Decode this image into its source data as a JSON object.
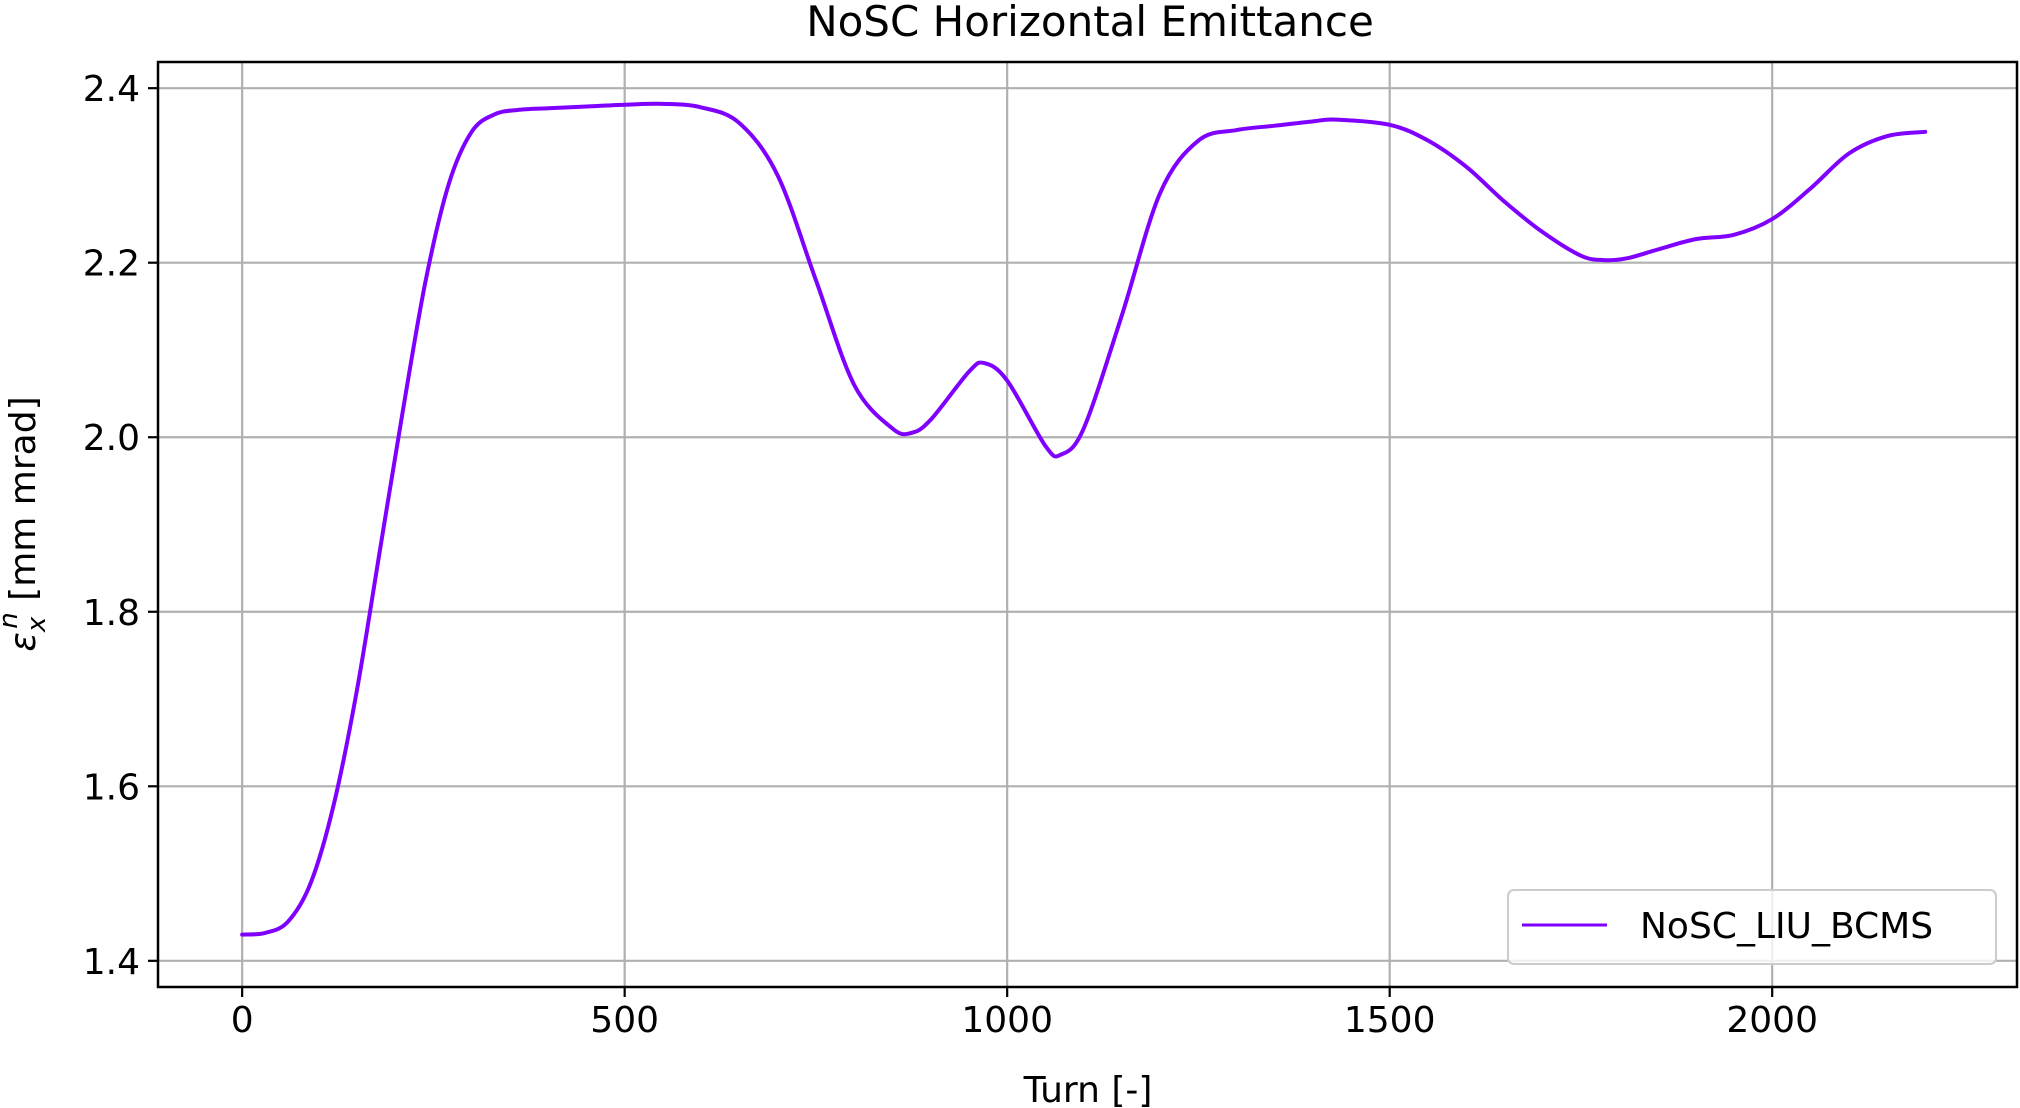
{
  "chart_data": {
    "type": "line",
    "title": "NoSC Horizontal Emittance",
    "xlabel": "Turn [-]",
    "ylabel": "ε",
    "ylabel_sub": "x",
    "ylabel_sup": "n",
    "ylabel_unit": " [mm mrad]",
    "xlim": [
      -110,
      2320
    ],
    "ylim": [
      1.37,
      2.43
    ],
    "xticks": [
      0,
      500,
      1000,
      1500,
      2000
    ],
    "xtick_labels": [
      "0",
      "500",
      "1000",
      "1500",
      "2000"
    ],
    "yticks": [
      1.4,
      1.6,
      1.8,
      2.0,
      2.2,
      2.4
    ],
    "ytick_labels": [
      "1.4",
      "1.6",
      "1.8",
      "2.0",
      "2.2",
      "2.4"
    ],
    "grid": true,
    "legend_position": "lower-right",
    "series": [
      {
        "name": "NoSC_LIU_BCMS",
        "color": "#7f00ff",
        "x": [
          0,
          30,
          60,
          90,
          120,
          150,
          180,
          210,
          240,
          270,
          300,
          330,
          360,
          400,
          450,
          500,
          550,
          600,
          650,
          700,
          750,
          800,
          850,
          875,
          900,
          950,
          970,
          1000,
          1050,
          1070,
          1100,
          1150,
          1200,
          1250,
          1300,
          1350,
          1400,
          1430,
          1500,
          1550,
          1600,
          1650,
          1700,
          1750,
          1780,
          1810,
          1850,
          1900,
          1950,
          2000,
          2050,
          2100,
          2150,
          2200
        ],
        "y": [
          1.43,
          1.432,
          1.445,
          1.49,
          1.58,
          1.71,
          1.87,
          2.03,
          2.18,
          2.29,
          2.35,
          2.37,
          2.375,
          2.377,
          2.379,
          2.381,
          2.382,
          2.378,
          2.36,
          2.3,
          2.18,
          2.06,
          2.01,
          2.005,
          2.02,
          2.075,
          2.085,
          2.065,
          1.99,
          1.98,
          2.01,
          2.14,
          2.28,
          2.34,
          2.352,
          2.357,
          2.362,
          2.364,
          2.358,
          2.34,
          2.31,
          2.27,
          2.235,
          2.208,
          2.203,
          2.205,
          2.215,
          2.227,
          2.232,
          2.25,
          2.285,
          2.325,
          2.345,
          2.35
        ]
      }
    ]
  }
}
